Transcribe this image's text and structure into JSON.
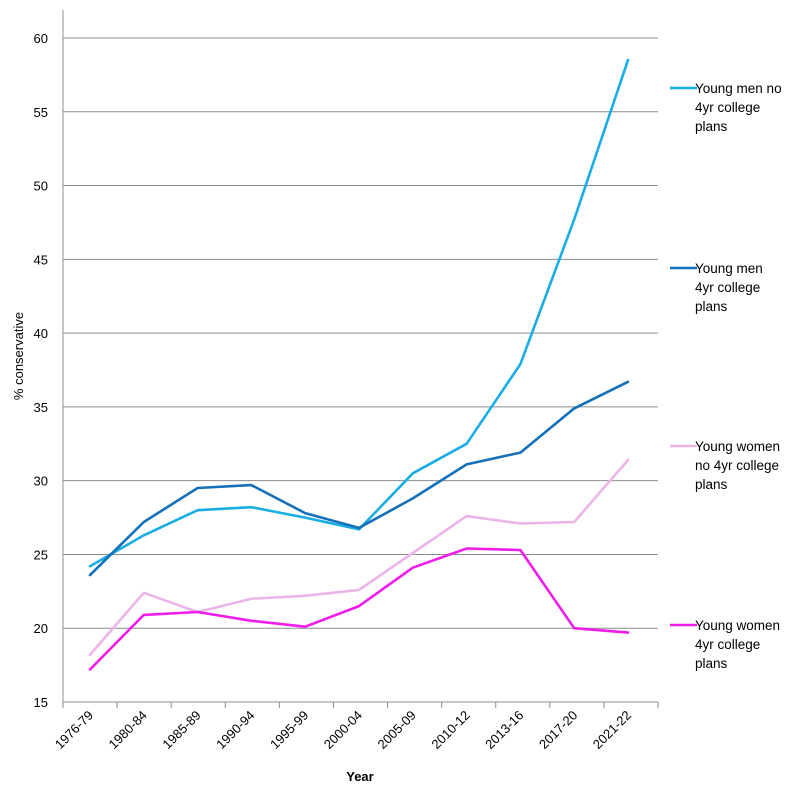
{
  "chart_data": {
    "type": "line",
    "title": "",
    "xlabel": "Year",
    "ylabel": "% conservative",
    "ylim": [
      15,
      60
    ],
    "yticks": [
      15,
      20,
      25,
      30,
      35,
      40,
      45,
      50,
      55,
      60
    ],
    "grid": true,
    "legend_position": "right",
    "x_tick_labels": [
      "1976-79",
      "1980-84",
      "1985-89",
      "1990-94",
      "1995-99",
      "2000-04",
      "2005-09",
      "2010-12",
      "2013-16",
      "2017-20",
      "2021-22"
    ],
    "x": [
      1,
      2,
      3,
      4,
      5,
      6,
      7,
      8,
      9,
      10,
      11
    ],
    "series": [
      {
        "name": "Young men no 4yr college plans",
        "legend_lines": [
          "Young men no",
          "4yr college",
          "plans"
        ],
        "color": "#1AADE4",
        "values": [
          24.2,
          26.3,
          28.0,
          28.2,
          27.5,
          26.7,
          30.5,
          32.5,
          37.9,
          47.7,
          58.5
        ]
      },
      {
        "name": "Young men 4yr college plans",
        "legend_lines": [
          "Young men",
          "4yr college",
          "plans"
        ],
        "color": "#1470B8",
        "values": [
          23.6,
          27.2,
          29.5,
          29.7,
          27.8,
          26.8,
          28.8,
          31.1,
          31.9,
          34.9,
          36.7
        ]
      },
      {
        "name": "Young women no 4yr college plans",
        "legend_lines": [
          "Young women",
          "no 4yr college",
          "plans"
        ],
        "color": "#EDB4EA",
        "values": [
          18.2,
          22.4,
          21.1,
          22.0,
          22.2,
          22.6,
          25.1,
          27.6,
          27.1,
          27.2,
          31.4
        ]
      },
      {
        "name": "Young women 4yr college plans",
        "legend_lines": [
          "Young women",
          "4yr college",
          "plans"
        ],
        "color": "#EF1CEB",
        "values": [
          17.2,
          20.9,
          21.1,
          20.5,
          20.1,
          21.5,
          24.1,
          25.4,
          25.3,
          20.0,
          19.7
        ]
      }
    ]
  }
}
